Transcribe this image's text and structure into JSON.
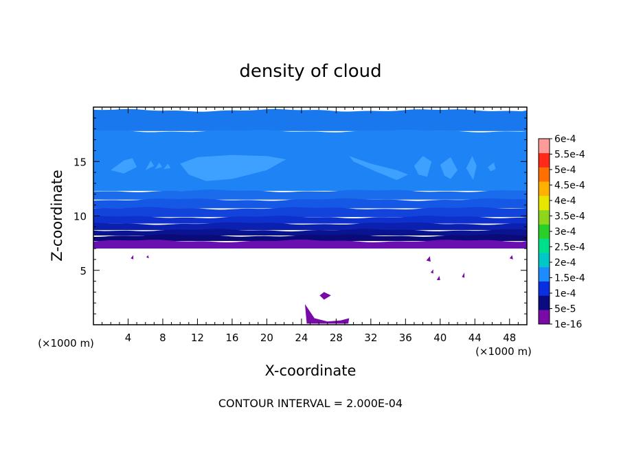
{
  "chart_data": {
    "type": "heatmap",
    "title": "density of cloud",
    "xlabel": "X-coordinate",
    "ylabel": "Z-coordinate",
    "x_unit_label": "(×1000 m)",
    "z_unit_label": "(×1000 m)",
    "xlim": [
      0,
      50
    ],
    "ylim": [
      0,
      20
    ],
    "x_ticks": [
      4,
      8,
      12,
      16,
      20,
      24,
      28,
      32,
      36,
      40,
      44,
      48
    ],
    "y_ticks": [
      5,
      10,
      15
    ],
    "footer": "CONTOUR INTERVAL = 2.000E-04",
    "colorbar": {
      "labels": [
        "1e-16",
        "5e-5",
        "1e-4",
        "1.5e-4",
        "2e-4",
        "2.5e-4",
        "3e-4",
        "3.5e-4",
        "4e-4",
        "4.5e-4",
        "5e-4",
        "5.5e-4",
        "6e-4"
      ],
      "colors": [
        "#7a0aa8",
        "#0a0a80",
        "#0a2fe0",
        "#1e8cff",
        "#00c8c8",
        "#00e08a",
        "#2ad02a",
        "#8ed61e",
        "#e6e600",
        "#ffb000",
        "#ff7000",
        "#ff2a1a",
        "#ff9a9a"
      ]
    },
    "layers": [
      {
        "z_bottom": 17.8,
        "z_top": 19.7,
        "color": "#1a78ee"
      },
      {
        "z_bottom": 12.3,
        "z_top": 17.8,
        "color": "#1e84f6"
      },
      {
        "z_bottom": 11.5,
        "z_top": 12.3,
        "color": "#1a6cec"
      },
      {
        "z_bottom": 10.7,
        "z_top": 11.5,
        "color": "#1658e6"
      },
      {
        "z_bottom": 9.9,
        "z_top": 10.7,
        "color": "#1244dc"
      },
      {
        "z_bottom": 9.3,
        "z_top": 9.9,
        "color": "#0e30cc"
      },
      {
        "z_bottom": 8.7,
        "z_top": 9.3,
        "color": "#0c20b0"
      },
      {
        "z_bottom": 8.2,
        "z_top": 8.7,
        "color": "#0a1490"
      },
      {
        "z_bottom": 7.7,
        "z_top": 8.2,
        "color": "#0a0a78"
      },
      {
        "z_bottom": 7.0,
        "z_top": 7.7,
        "color": "#6a10b0"
      }
    ],
    "patches": [
      {
        "color": "#3ea0ff",
        "points": [
          [
            2,
            14.2
          ],
          [
            3.5,
            15.1
          ],
          [
            4.5,
            15.3
          ],
          [
            5,
            14.5
          ],
          [
            3.5,
            13.9
          ]
        ]
      },
      {
        "color": "#3ea0ff",
        "points": [
          [
            10,
            14.8
          ],
          [
            12,
            15.4
          ],
          [
            16,
            15.6
          ],
          [
            20,
            15.5
          ],
          [
            22.2,
            15.2
          ],
          [
            20,
            14.2
          ],
          [
            16,
            13.4
          ],
          [
            13,
            13.2
          ],
          [
            11,
            13.8
          ]
        ]
      },
      {
        "color": "#3ea0ff",
        "points": [
          [
            6,
            14.2
          ],
          [
            6.6,
            15.1
          ],
          [
            7,
            14.6
          ]
        ]
      },
      {
        "color": "#3ea0ff",
        "points": [
          [
            7.1,
            14.3
          ],
          [
            7.6,
            14.9
          ],
          [
            7.9,
            14.5
          ]
        ]
      },
      {
        "color": "#3ea0ff",
        "points": [
          [
            8.1,
            14.3
          ],
          [
            8.6,
            14.8
          ],
          [
            8.9,
            14.4
          ]
        ]
      },
      {
        "color": "#3ea0ff",
        "points": [
          [
            29.5,
            15.5
          ],
          [
            32,
            14.8
          ],
          [
            35,
            14.2
          ],
          [
            36.3,
            13.8
          ],
          [
            35,
            13.3
          ],
          [
            32.5,
            14.1
          ],
          [
            30,
            15
          ]
        ]
      },
      {
        "color": "#3ea0ff",
        "points": [
          [
            37,
            14.6
          ],
          [
            38,
            15.5
          ],
          [
            39,
            15
          ],
          [
            38.5,
            13.6
          ],
          [
            37.5,
            13.8
          ]
        ]
      },
      {
        "color": "#3ea0ff",
        "points": [
          [
            40,
            14.7
          ],
          [
            41.2,
            15.4
          ],
          [
            42,
            14.2
          ],
          [
            41.2,
            13.4
          ],
          [
            40.5,
            13.7
          ]
        ]
      },
      {
        "color": "#3ea0ff",
        "points": [
          [
            43,
            14.4
          ],
          [
            43.7,
            15.5
          ],
          [
            44.2,
            14.6
          ],
          [
            43.8,
            13.3
          ]
        ]
      },
      {
        "color": "#3ea0ff",
        "points": [
          [
            45.5,
            14.5
          ],
          [
            46.2,
            14.9
          ],
          [
            46.4,
            14.3
          ],
          [
            45.8,
            14.1
          ]
        ]
      },
      {
        "color": "#7a0aa8",
        "points": [
          [
            24.4,
            1.9
          ],
          [
            25.5,
            0.6
          ],
          [
            27,
            0.3
          ],
          [
            28.5,
            0.4
          ],
          [
            29.5,
            0.6
          ],
          [
            29.4,
            0.1
          ],
          [
            24.6,
            0.1
          ]
        ]
      },
      {
        "color": "#7a0aa8",
        "points": [
          [
            26.1,
            2.7
          ],
          [
            26.6,
            3
          ],
          [
            27.4,
            2.7
          ],
          [
            26.6,
            2.3
          ]
        ]
      },
      {
        "color": "#7a0aa8",
        "points": [
          [
            38.4,
            5.9
          ],
          [
            38.8,
            6.3
          ],
          [
            38.9,
            5.8
          ]
        ]
      },
      {
        "color": "#7a0aa8",
        "points": [
          [
            38.9,
            4.8
          ],
          [
            39.2,
            5.1
          ],
          [
            39.2,
            4.7
          ]
        ]
      },
      {
        "color": "#7a0aa8",
        "points": [
          [
            39.6,
            4.1
          ],
          [
            39.9,
            4.5
          ],
          [
            40,
            4.1
          ]
        ]
      },
      {
        "color": "#7a0aa8",
        "points": [
          [
            42.5,
            4.4
          ],
          [
            42.8,
            4.8
          ],
          [
            42.8,
            4.3
          ]
        ]
      },
      {
        "color": "#7a0aa8",
        "points": [
          [
            48,
            6.1
          ],
          [
            48.3,
            6.4
          ],
          [
            48.4,
            6
          ]
        ]
      },
      {
        "color": "#7a0aa8",
        "points": [
          [
            4.3,
            6.1
          ],
          [
            4.6,
            6.4
          ],
          [
            4.6,
            6
          ]
        ]
      },
      {
        "color": "#7a0aa8",
        "points": [
          [
            6.1,
            6.2
          ],
          [
            6.3,
            6.4
          ],
          [
            6.4,
            6.1
          ]
        ]
      }
    ]
  }
}
